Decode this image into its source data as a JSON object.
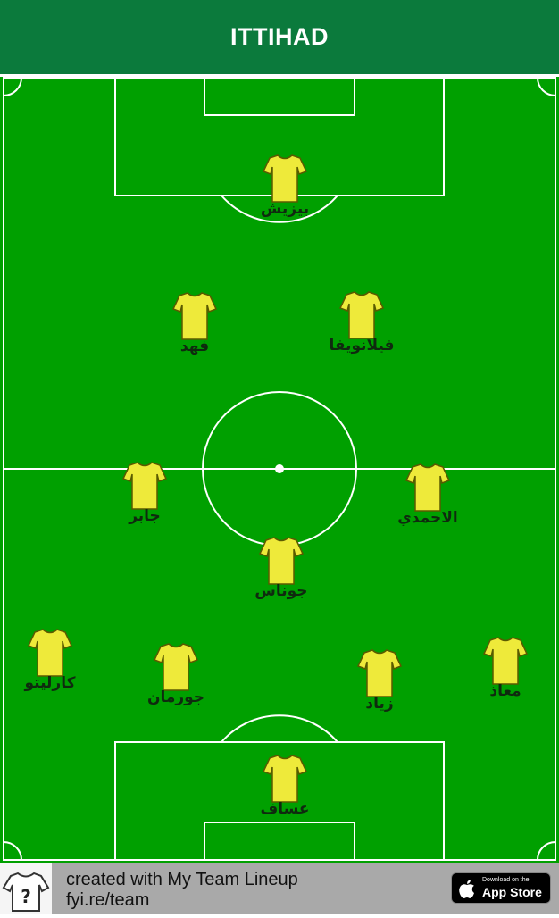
{
  "team": {
    "name": "ITTIHAD"
  },
  "colors": {
    "header": "#0b7a3c",
    "pitch": "#00a000",
    "shirt": "#eeea3a",
    "footer": "#a9a9a9"
  },
  "players": [
    {
      "name": "بيزيش",
      "shirt_icon": "shirt-icon"
    },
    {
      "name": "فهد",
      "shirt_icon": "shirt-icon"
    },
    {
      "name": "فيلانويفا",
      "shirt_icon": "shirt-icon"
    },
    {
      "name": "جابر",
      "shirt_icon": "shirt-icon"
    },
    {
      "name": "الاحمدي",
      "shirt_icon": "shirt-icon"
    },
    {
      "name": "جوناس",
      "shirt_icon": "shirt-icon"
    },
    {
      "name": "كارليتو",
      "shirt_icon": "shirt-icon"
    },
    {
      "name": "جورمان",
      "shirt_icon": "shirt-icon"
    },
    {
      "name": "زياد",
      "shirt_icon": "shirt-icon"
    },
    {
      "name": "معاذ",
      "shirt_icon": "shirt-icon"
    },
    {
      "name": "عساف",
      "shirt_icon": "shirt-icon"
    }
  ],
  "footer": {
    "line1": "created with My Team Lineup",
    "line2": "fyi.re/team",
    "app_badge_small": "Download on the",
    "app_badge_big": "App Store"
  }
}
